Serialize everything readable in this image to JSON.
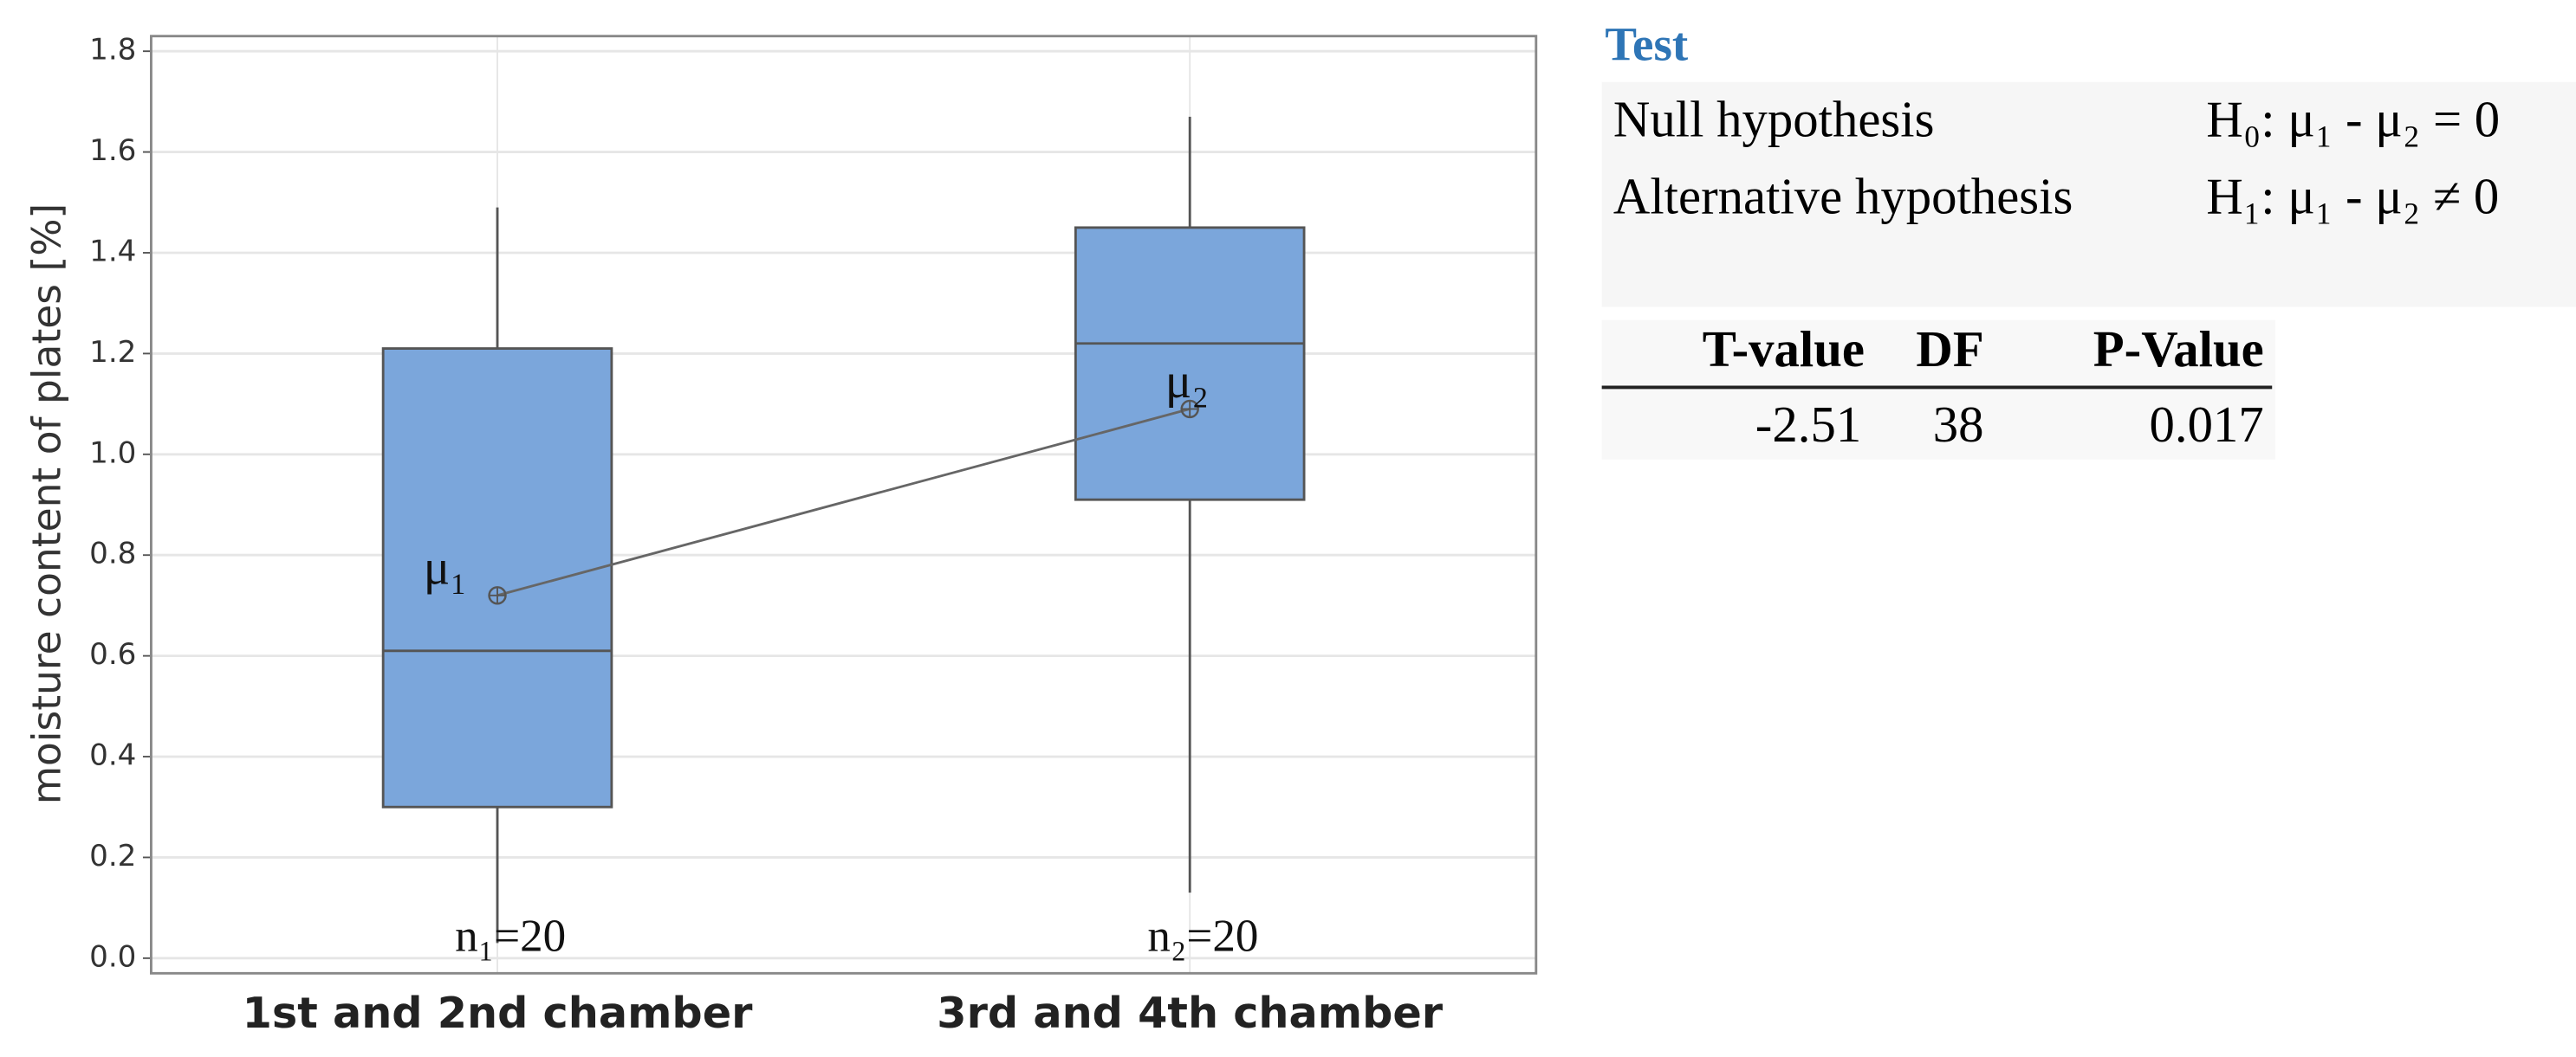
{
  "chart_data": {
    "type": "box",
    "y_label": "moisture content of plates [%]",
    "categories": [
      "1st and 2nd chamber",
      "3rd and 4th chamber"
    ],
    "color": "#7ba6db",
    "boxes": [
      {
        "whisker_low": 0.03,
        "q1": 0.3,
        "median": 0.61,
        "q3": 1.21,
        "whisker_high": 1.49,
        "mean": 0.72,
        "mean_label": "μ₁",
        "n_label": "n₁=20"
      },
      {
        "whisker_low": 0.13,
        "q1": 0.91,
        "median": 1.22,
        "q3": 1.45,
        "whisker_high": 1.67,
        "mean": 1.09,
        "mean_label": "μ₂",
        "n_label": "n₂=20"
      }
    ],
    "ylim": [
      -0.03,
      1.83
    ],
    "yticks": [
      {
        "value": 0,
        "label": "0.0"
      },
      0.2,
      0.4,
      0.6,
      0.8,
      {
        "value": 1,
        "label": "1.0"
      },
      1.2,
      1.4,
      1.6,
      1.8
    ],
    "grid": true
  },
  "test": {
    "title": "Test",
    "hypotheses": [
      [
        "Null hypothesis",
        "H₀: μ₁ - μ₂ = 0"
      ],
      [
        "Alternative hypothesis",
        "H₁: μ₁ - μ₂ ≠ 0"
      ]
    ],
    "table": {
      "header": [
        "T-value",
        "DF",
        "P-Value"
      ],
      "rows": [
        [
          "-2.51",
          "38",
          "0.017"
        ]
      ]
    }
  }
}
